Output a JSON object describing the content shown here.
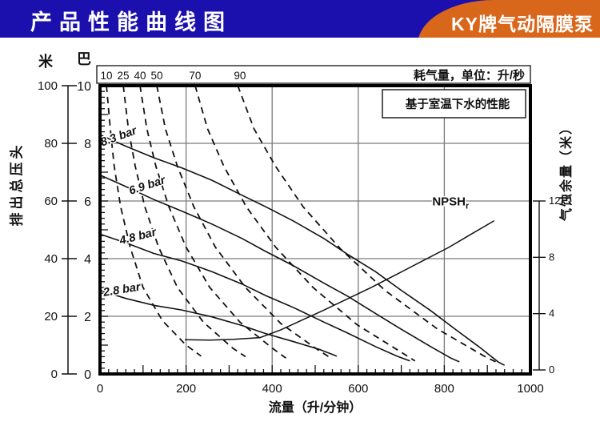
{
  "header": {
    "title": "产品性能曲线图",
    "badge": "KY牌气动隔膜泵",
    "bar_color": "#1b10ae",
    "badge_color": "#d8671c",
    "text_color": "#ffffff"
  },
  "chart_data": {
    "type": "line",
    "note_box": "基于室温下水的性能",
    "x_axis": {
      "title": "流量（升/分钟）",
      "min": 0,
      "max": 1000,
      "major_ticks": [
        0,
        200,
        400,
        600,
        800,
        1000
      ],
      "minor_step": 20,
      "grid_ticks": [
        200,
        400,
        600,
        800
      ]
    },
    "left_axis_m": {
      "unit": "米",
      "title": "排出总压头",
      "min": 0,
      "max": 100,
      "ticks": [
        0,
        20,
        40,
        60,
        80,
        100
      ]
    },
    "left_axis_bar": {
      "unit": "巴",
      "min": 0,
      "max": 10,
      "ticks": [
        0,
        2,
        4,
        6,
        8,
        10
      ],
      "grid_ticks": [
        2,
        4,
        6,
        8
      ],
      "minor_step": 0.2
    },
    "right_axis": {
      "title": "气蚀余量（米）",
      "min": 0,
      "max": 12,
      "ticks": [
        0,
        4,
        8,
        12
      ]
    },
    "top_axis": {
      "title": "耗气量，单位：升/秒",
      "ticks": [
        {
          "label": "10",
          "flow": 15
        },
        {
          "label": "25",
          "flow": 54
        },
        {
          "label": "40",
          "flow": 93
        },
        {
          "label": "50",
          "flow": 132
        },
        {
          "label": "70",
          "flow": 221
        },
        {
          "label": "90",
          "flow": 325
        }
      ]
    },
    "pressure_curves": [
      {
        "label": "8.3 bar",
        "label_pos": [
          46,
          8.12
        ],
        "label_rot": -20,
        "points": [
          [
            0,
            8.3
          ],
          [
            60,
            7.9
          ],
          [
            125,
            7.5
          ],
          [
            190,
            7.15
          ],
          [
            260,
            6.72
          ],
          [
            330,
            6.2
          ],
          [
            385,
            5.8
          ],
          [
            450,
            5.3
          ],
          [
            520,
            4.7
          ],
          [
            575,
            4.15
          ],
          [
            640,
            3.55
          ],
          [
            700,
            2.9
          ],
          [
            768,
            2.2
          ],
          [
            830,
            1.5
          ],
          [
            880,
            0.95
          ],
          [
            925,
            0.42
          ],
          [
            940,
            0.3
          ]
        ]
      },
      {
        "label": "6.9 bar",
        "label_pos": [
          112,
          6.42
        ],
        "label_rot": -18,
        "points": [
          [
            0,
            6.9
          ],
          [
            60,
            6.5
          ],
          [
            125,
            6.05
          ],
          [
            190,
            5.65
          ],
          [
            260,
            5.2
          ],
          [
            330,
            4.7
          ],
          [
            385,
            4.25
          ],
          [
            450,
            3.75
          ],
          [
            520,
            3.15
          ],
          [
            575,
            2.7
          ],
          [
            640,
            2.1
          ],
          [
            700,
            1.55
          ],
          [
            768,
            0.95
          ],
          [
            815,
            0.55
          ],
          [
            835,
            0.42
          ]
        ]
      },
      {
        "label": "4.8 bar",
        "label_pos": [
          90,
          4.65
        ],
        "label_rot": -14,
        "points": [
          [
            0,
            4.85
          ],
          [
            60,
            4.55
          ],
          [
            125,
            4.18
          ],
          [
            190,
            3.92
          ],
          [
            260,
            3.55
          ],
          [
            330,
            3.12
          ],
          [
            385,
            2.72
          ],
          [
            450,
            2.3
          ],
          [
            520,
            1.8
          ],
          [
            575,
            1.42
          ],
          [
            640,
            0.95
          ],
          [
            690,
            0.62
          ],
          [
            720,
            0.45
          ]
        ]
      },
      {
        "label": "2.8 bar",
        "label_pos": [
          52,
          2.8
        ],
        "label_rot": -9,
        "points": [
          [
            0,
            2.9
          ],
          [
            60,
            2.62
          ],
          [
            125,
            2.38
          ],
          [
            190,
            2.22
          ],
          [
            260,
            1.98
          ],
          [
            330,
            1.68
          ],
          [
            385,
            1.4
          ],
          [
            450,
            1.12
          ],
          [
            510,
            0.85
          ],
          [
            550,
            0.62
          ]
        ]
      }
    ],
    "npsh_curve": {
      "label": "NPSH",
      "label_sub": "r",
      "label_pos": [
        772,
        11.7
      ],
      "points": [
        [
          197,
          2.15
        ],
        [
          255,
          2.12
        ],
        [
          310,
          2.18
        ],
        [
          372,
          2.3
        ],
        [
          420,
          2.85
        ],
        [
          470,
          3.55
        ],
        [
          520,
          4.25
        ],
        [
          575,
          5.05
        ],
        [
          630,
          5.85
        ],
        [
          690,
          6.8
        ],
        [
          750,
          7.75
        ],
        [
          810,
          8.7
        ],
        [
          860,
          9.6
        ],
        [
          916,
          10.6
        ]
      ]
    },
    "air_curves": [
      {
        "label": "10",
        "points": [
          [
            15,
            10
          ],
          [
            24,
            8.5
          ],
          [
            33,
            7.2
          ],
          [
            48,
            5.8
          ],
          [
            70,
            4.4
          ],
          [
            100,
            3.0
          ],
          [
            145,
            1.85
          ],
          [
            200,
            1.0
          ],
          [
            235,
            0.62
          ]
        ]
      },
      {
        "label": "25",
        "points": [
          [
            54,
            10
          ],
          [
            66,
            8.5
          ],
          [
            82,
            7.2
          ],
          [
            104,
            5.8
          ],
          [
            136,
            4.4
          ],
          [
            180,
            3.0
          ],
          [
            240,
            1.8
          ],
          [
            308,
            0.9
          ],
          [
            338,
            0.6
          ]
        ]
      },
      {
        "label": "40",
        "points": [
          [
            93,
            10
          ],
          [
            109,
            8.5
          ],
          [
            130,
            7.2
          ],
          [
            160,
            5.8
          ],
          [
            200,
            4.4
          ],
          [
            255,
            3.0
          ],
          [
            325,
            1.8
          ],
          [
            400,
            0.9
          ],
          [
            432,
            0.55
          ]
        ]
      },
      {
        "label": "50",
        "points": [
          [
            132,
            10
          ],
          [
            152,
            8.5
          ],
          [
            180,
            7.2
          ],
          [
            218,
            5.8
          ],
          [
            268,
            4.4
          ],
          [
            338,
            3.0
          ],
          [
            420,
            1.75
          ],
          [
            505,
            0.85
          ],
          [
            540,
            0.52
          ]
        ]
      },
      {
        "label": "70",
        "points": [
          [
            221,
            10
          ],
          [
            250,
            8.5
          ],
          [
            288,
            7.2
          ],
          [
            340,
            5.8
          ],
          [
            408,
            4.4
          ],
          [
            495,
            3.0
          ],
          [
            598,
            1.7
          ],
          [
            695,
            0.8
          ],
          [
            732,
            0.45
          ]
        ]
      },
      {
        "label": "90",
        "points": [
          [
            320,
            10
          ],
          [
            358,
            8.5
          ],
          [
            408,
            7.2
          ],
          [
            472,
            5.8
          ],
          [
            558,
            4.35
          ],
          [
            662,
            2.9
          ],
          [
            785,
            1.55
          ],
          [
            895,
            0.6
          ],
          [
            922,
            0.4
          ]
        ]
      }
    ],
    "colors": {
      "line": "#111111",
      "grid": "#7a7a7a",
      "frame": "#000000"
    }
  }
}
